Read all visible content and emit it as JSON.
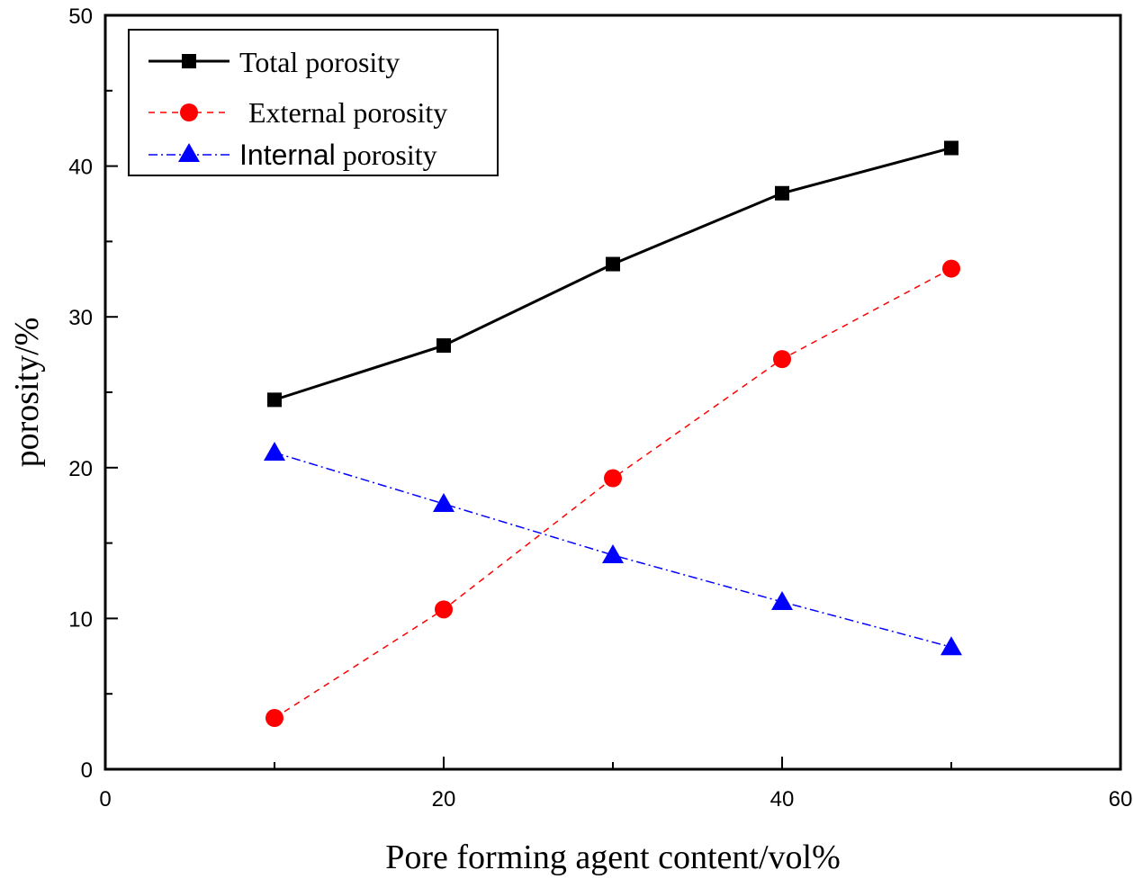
{
  "chart_data": {
    "type": "line",
    "title": "",
    "xlabel": "Pore forming agent content/vol%",
    "ylabel": "porosity/%",
    "xlim": [
      0,
      60
    ],
    "ylim": [
      0,
      50
    ],
    "xticks": [
      0,
      20,
      40,
      60
    ],
    "yticks": [
      0,
      10,
      20,
      30,
      40,
      50
    ],
    "xtick_labels": [
      "0",
      "20",
      "40",
      "60"
    ],
    "ytick_labels": [
      "0",
      "10",
      "20",
      "30",
      "40",
      "50"
    ],
    "grid": false,
    "legend_position": "top-left",
    "x": [
      10,
      20,
      30,
      40,
      50
    ],
    "series": [
      {
        "name": "Total porosity",
        "values": [
          24.5,
          28.1,
          33.5,
          38.2,
          41.2
        ],
        "color": "#000000",
        "marker": "square",
        "line": "solid"
      },
      {
        "name": "External porosity",
        "values": [
          3.4,
          10.6,
          19.3,
          27.2,
          33.2
        ],
        "color": "#ff0000",
        "marker": "circle",
        "line": "dashed"
      },
      {
        "name": "Internal porosity",
        "values": [
          21.0,
          17.6,
          14.2,
          11.1,
          8.1
        ],
        "color": "#0000ff",
        "marker": "triangle",
        "line": "dashdot"
      }
    ],
    "legend": {
      "items": [
        {
          "label": "Total porosity"
        },
        {
          "label_prefix": " External porosity"
        },
        {
          "label_bold": "Internal",
          "label_rest": " porosity"
        }
      ]
    }
  }
}
